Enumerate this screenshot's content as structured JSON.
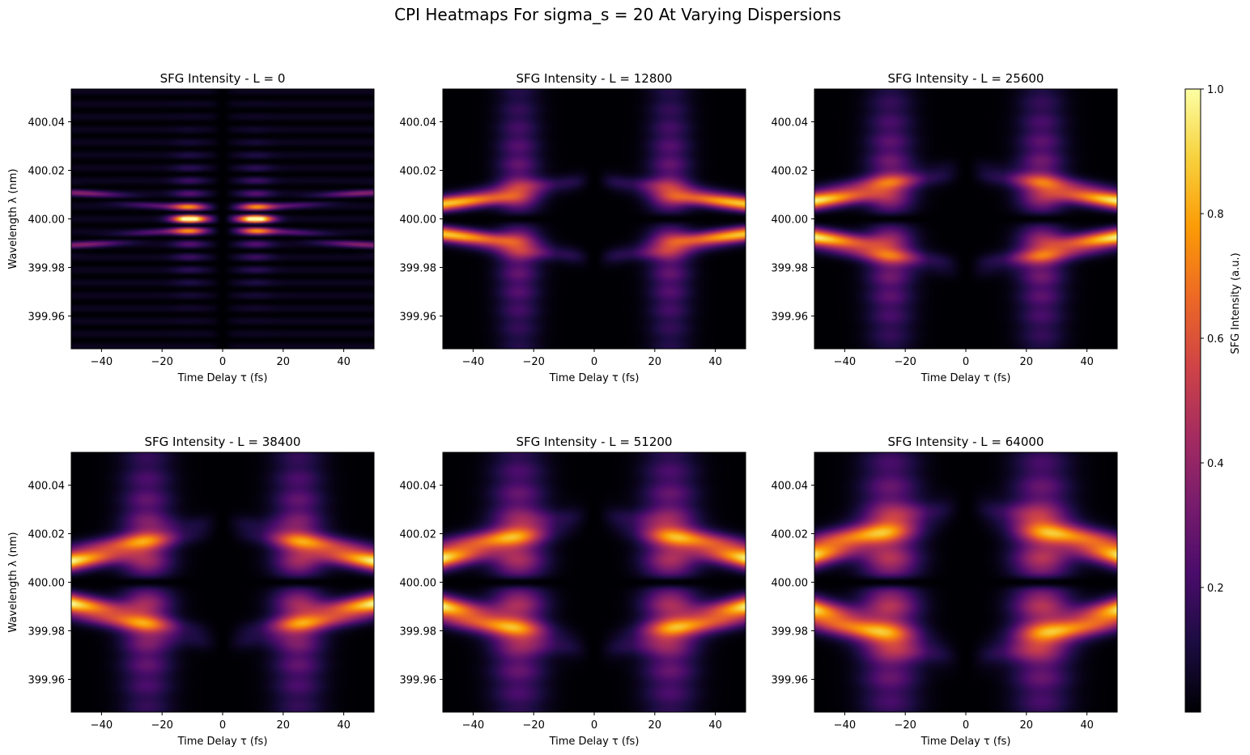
{
  "figure": {
    "suptitle": "CPI Heatmaps For sigma_s = 20 At Varying Dispersions"
  },
  "colormap": {
    "name": "inferno",
    "stops": [
      "#000004",
      "#1b0c41",
      "#4a0c6b",
      "#781c6d",
      "#a52c60",
      "#cf4446",
      "#ed6925",
      "#fb9b06",
      "#f7d13d",
      "#fcffa4"
    ]
  },
  "chart_data": [
    {
      "type": "heatmap",
      "title": "SFG Intensity - L = 0",
      "dispersion_L": 0,
      "xlabel": "Time Delay τ (fs)",
      "ylabel": "Wavelength λ (nm)",
      "xlim": [
        -50,
        50
      ],
      "ylim": [
        399.9465,
        400.0535
      ],
      "xticks": [
        -40,
        -20,
        0,
        20,
        40
      ],
      "xtick_labels": [
        "−40",
        "−20",
        "0",
        "20",
        "40"
      ],
      "yticks": [
        399.96,
        399.98,
        400.0,
        400.02,
        400.04
      ],
      "ytick_labels": [
        "399.96",
        "399.98",
        "400.00",
        "400.02",
        "400.04"
      ],
      "peak_intensity": 1.0,
      "peak_locations": [
        {
          "tau": -11,
          "lambda": 400.003
        },
        {
          "tau": 11,
          "lambda": 400.003
        },
        {
          "tau": -11,
          "lambda": 399.998
        },
        {
          "tau": 11,
          "lambda": 399.998
        }
      ]
    },
    {
      "type": "heatmap",
      "title": "SFG Intensity - L = 12800",
      "dispersion_L": 12800,
      "xlabel": "Time Delay τ (fs)",
      "ylabel": "",
      "xlim": [
        -50,
        50
      ],
      "ylim": [
        399.9465,
        400.0535
      ],
      "xticks": [
        -40,
        -20,
        0,
        20,
        40
      ],
      "xtick_labels": [
        "−40",
        "−20",
        "0",
        "20",
        "40"
      ],
      "yticks": [
        399.96,
        399.98,
        400.0,
        400.02,
        400.04
      ],
      "ytick_labels": [
        "399.96",
        "399.98",
        "400.00",
        "400.02",
        "400.04"
      ],
      "peak_intensity": 1.0,
      "peak_locations": [
        {
          "tau": -45,
          "lambda": 400.004
        },
        {
          "tau": 45,
          "lambda": 400.004
        },
        {
          "tau": -45,
          "lambda": 399.997
        },
        {
          "tau": 45,
          "lambda": 399.997
        }
      ]
    },
    {
      "type": "heatmap",
      "title": "SFG Intensity - L = 25600",
      "dispersion_L": 25600,
      "xlabel": "Time Delay τ (fs)",
      "ylabel": "",
      "xlim": [
        -50,
        50
      ],
      "ylim": [
        399.9465,
        400.0535
      ],
      "xticks": [
        -40,
        -20,
        0,
        20,
        40
      ],
      "xtick_labels": [
        "−40",
        "−20",
        "0",
        "20",
        "40"
      ],
      "yticks": [
        399.96,
        399.98,
        400.0,
        400.02,
        400.04
      ],
      "ytick_labels": [
        "399.96",
        "399.98",
        "400.00",
        "400.02",
        "400.04"
      ],
      "peak_intensity": 1.0,
      "peak_locations": [
        {
          "tau": -45,
          "lambda": 400.006
        },
        {
          "tau": 45,
          "lambda": 400.006
        },
        {
          "tau": -45,
          "lambda": 399.995
        },
        {
          "tau": 45,
          "lambda": 399.995
        }
      ]
    },
    {
      "type": "heatmap",
      "title": "SFG Intensity - L = 38400",
      "dispersion_L": 38400,
      "xlabel": "Time Delay τ (fs)",
      "ylabel": "Wavelength λ (nm)",
      "xlim": [
        -50,
        50
      ],
      "ylim": [
        399.9465,
        400.0535
      ],
      "xticks": [
        -40,
        -20,
        0,
        20,
        40
      ],
      "xtick_labels": [
        "−40",
        "−20",
        "0",
        "20",
        "40"
      ],
      "yticks": [
        399.96,
        399.98,
        400.0,
        400.02,
        400.04
      ],
      "ytick_labels": [
        "399.96",
        "399.98",
        "400.00",
        "400.02",
        "400.04"
      ],
      "peak_intensity": 1.0,
      "peak_locations": [
        {
          "tau": -45,
          "lambda": 400.009
        },
        {
          "tau": 45,
          "lambda": 400.009
        },
        {
          "tau": -45,
          "lambda": 399.992
        },
        {
          "tau": 45,
          "lambda": 399.992
        }
      ]
    },
    {
      "type": "heatmap",
      "title": "SFG Intensity - L = 51200",
      "dispersion_L": 51200,
      "xlabel": "Time Delay τ (fs)",
      "ylabel": "",
      "xlim": [
        -50,
        50
      ],
      "ylim": [
        399.9465,
        400.0535
      ],
      "xticks": [
        -40,
        -20,
        0,
        20,
        40
      ],
      "xtick_labels": [
        "−40",
        "−20",
        "0",
        "20",
        "40"
      ],
      "yticks": [
        399.96,
        399.98,
        400.0,
        400.02,
        400.04
      ],
      "ytick_labels": [
        "399.96",
        "399.98",
        "400.00",
        "400.02",
        "400.04"
      ],
      "peak_intensity": 1.0,
      "peak_locations": [
        {
          "tau": -45,
          "lambda": 400.01
        },
        {
          "tau": 45,
          "lambda": 400.01
        },
        {
          "tau": -45,
          "lambda": 399.991
        },
        {
          "tau": 45,
          "lambda": 399.991
        }
      ]
    },
    {
      "type": "heatmap",
      "title": "SFG Intensity - L = 64000",
      "dispersion_L": 64000,
      "xlabel": "Time Delay τ (fs)",
      "ylabel": "",
      "xlim": [
        -50,
        50
      ],
      "ylim": [
        399.9465,
        400.0535
      ],
      "xticks": [
        -40,
        -20,
        0,
        20,
        40
      ],
      "xtick_labels": [
        "−40",
        "−20",
        "0",
        "20",
        "40"
      ],
      "yticks": [
        399.96,
        399.98,
        400.0,
        400.02,
        400.04
      ],
      "ytick_labels": [
        "399.96",
        "399.98",
        "400.00",
        "400.02",
        "400.04"
      ],
      "peak_intensity": 1.0,
      "peak_locations": [
        {
          "tau": -45,
          "lambda": 400.012
        },
        {
          "tau": 45,
          "lambda": 400.012
        },
        {
          "tau": -45,
          "lambda": 399.989
        },
        {
          "tau": 45,
          "lambda": 399.989
        }
      ]
    }
  ],
  "colorbar": {
    "label": "SFG Intensity (a.u.)",
    "range": [
      0.0,
      1.0
    ],
    "ticks": [
      0.2,
      0.4,
      0.6,
      0.8,
      1.0
    ],
    "tick_labels": [
      "0.2",
      "0.4",
      "0.6",
      "0.8",
      "1.0"
    ]
  }
}
